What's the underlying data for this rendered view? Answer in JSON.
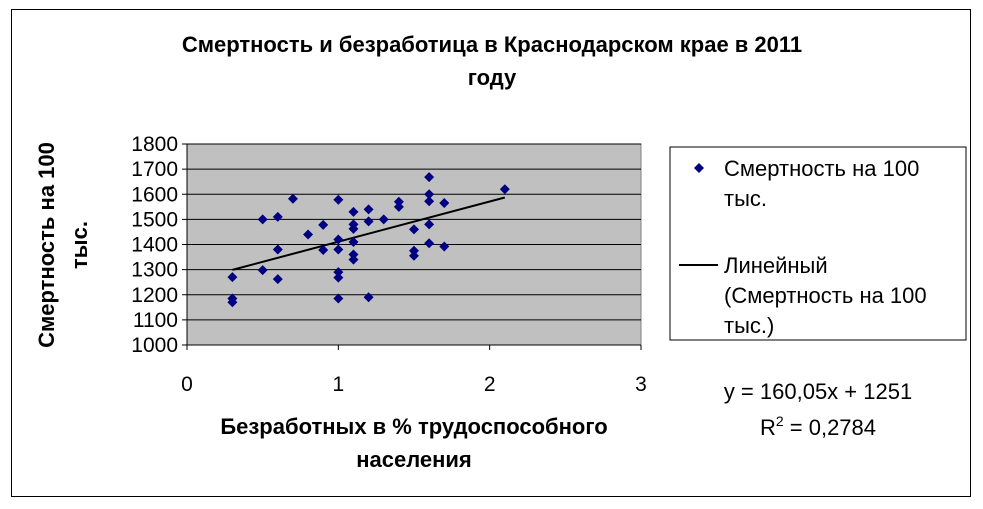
{
  "chart_data": {
    "type": "scatter",
    "title": "Смертность и безработица в Краснодарском крае в 2011 году",
    "title_lines": [
      "Смертность и безработица в Краснодарском крае в 2011",
      "году"
    ],
    "xlabel": "Безработных в % трудоспособного населения",
    "xlabel_lines": [
      "Безработных в % трудоспособного",
      "населения"
    ],
    "ylabel": "Смертность на 100 тыс.",
    "ylabel_lines": [
      "Смертность на 100",
      "тыс."
    ],
    "xlim": [
      0,
      3
    ],
    "ylim": [
      1000,
      1800
    ],
    "xticks": [
      "0",
      "1",
      "2",
      "3"
    ],
    "yticks": [
      "1000",
      "1100",
      "1200",
      "1300",
      "1400",
      "1500",
      "1600",
      "1700",
      "1800"
    ],
    "grid": "horizontal",
    "legend_position": "right",
    "series": [
      {
        "name": "Смертность на 100 тыс.",
        "marker": "diamond",
        "color": "#000080",
        "points": [
          [
            0.3,
            1270
          ],
          [
            0.3,
            1185
          ],
          [
            0.3,
            1170
          ],
          [
            0.5,
            1500
          ],
          [
            0.5,
            1298
          ],
          [
            0.6,
            1510
          ],
          [
            0.6,
            1380
          ],
          [
            0.6,
            1262
          ],
          [
            0.7,
            1582
          ],
          [
            0.8,
            1440
          ],
          [
            0.9,
            1478
          ],
          [
            0.9,
            1378
          ],
          [
            1.0,
            1578
          ],
          [
            1.0,
            1420
          ],
          [
            1.0,
            1380
          ],
          [
            1.0,
            1290
          ],
          [
            1.0,
            1268
          ],
          [
            1.0,
            1185
          ],
          [
            1.1,
            1530
          ],
          [
            1.1,
            1480
          ],
          [
            1.1,
            1462
          ],
          [
            1.1,
            1410
          ],
          [
            1.1,
            1360
          ],
          [
            1.1,
            1340
          ],
          [
            1.2,
            1540
          ],
          [
            1.2,
            1492
          ],
          [
            1.2,
            1190
          ],
          [
            1.3,
            1500
          ],
          [
            1.4,
            1570
          ],
          [
            1.4,
            1550
          ],
          [
            1.5,
            1460
          ],
          [
            1.5,
            1375
          ],
          [
            1.5,
            1355
          ],
          [
            1.6,
            1668
          ],
          [
            1.6,
            1600
          ],
          [
            1.6,
            1572
          ],
          [
            1.6,
            1480
          ],
          [
            1.6,
            1405
          ],
          [
            1.7,
            1565
          ],
          [
            1.7,
            1392
          ],
          [
            2.1,
            1620
          ]
        ]
      }
    ],
    "trendline": {
      "name_lines": [
        "Линейный",
        "(Смертность на 100",
        "тыс.)"
      ],
      "type": "linear",
      "slope": 160.05,
      "intercept": 1251,
      "x_range": [
        0.3,
        2.1
      ],
      "color": "#000000"
    },
    "equation": "y = 160,05x + 1251",
    "r2_label": "R",
    "r2_sup": "2",
    "r2_value": " = 0,2784",
    "plot_bg": "#c0c0c0"
  }
}
